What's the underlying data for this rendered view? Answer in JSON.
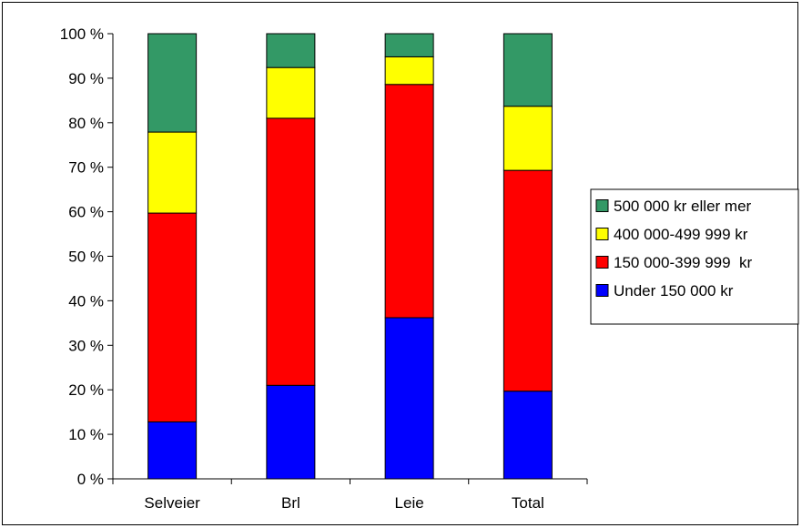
{
  "chart_data": {
    "type": "bar",
    "stacked": "percent",
    "title": "",
    "xlabel": "",
    "ylabel": "",
    "categories": [
      "Selveier",
      "Brl",
      "Leie",
      "Total"
    ],
    "ylim": [
      0,
      100
    ],
    "yticks": [
      "0 %",
      "10 %",
      "20 %",
      "30 %",
      "40 %",
      "50 %",
      "60 %",
      "70 %",
      "80 %",
      "90 %",
      "100 %"
    ],
    "grid": false,
    "legend_position": "right",
    "series": [
      {
        "name": "Under 150 000 kr",
        "color": "#0000FF",
        "values": [
          12.8,
          21.0,
          36.2,
          19.7
        ]
      },
      {
        "name": "150 000-399 999  kr",
        "color": "#FF0000",
        "values": [
          46.9,
          60.0,
          52.4,
          49.6
        ]
      },
      {
        "name": "400 000-499 999 kr",
        "color": "#FFFF00",
        "values": [
          18.2,
          11.4,
          6.2,
          14.4
        ]
      },
      {
        "name": "500 000 kr eller mer",
        "color": "#339966",
        "values": [
          22.1,
          7.6,
          5.2,
          16.3
        ]
      }
    ]
  }
}
